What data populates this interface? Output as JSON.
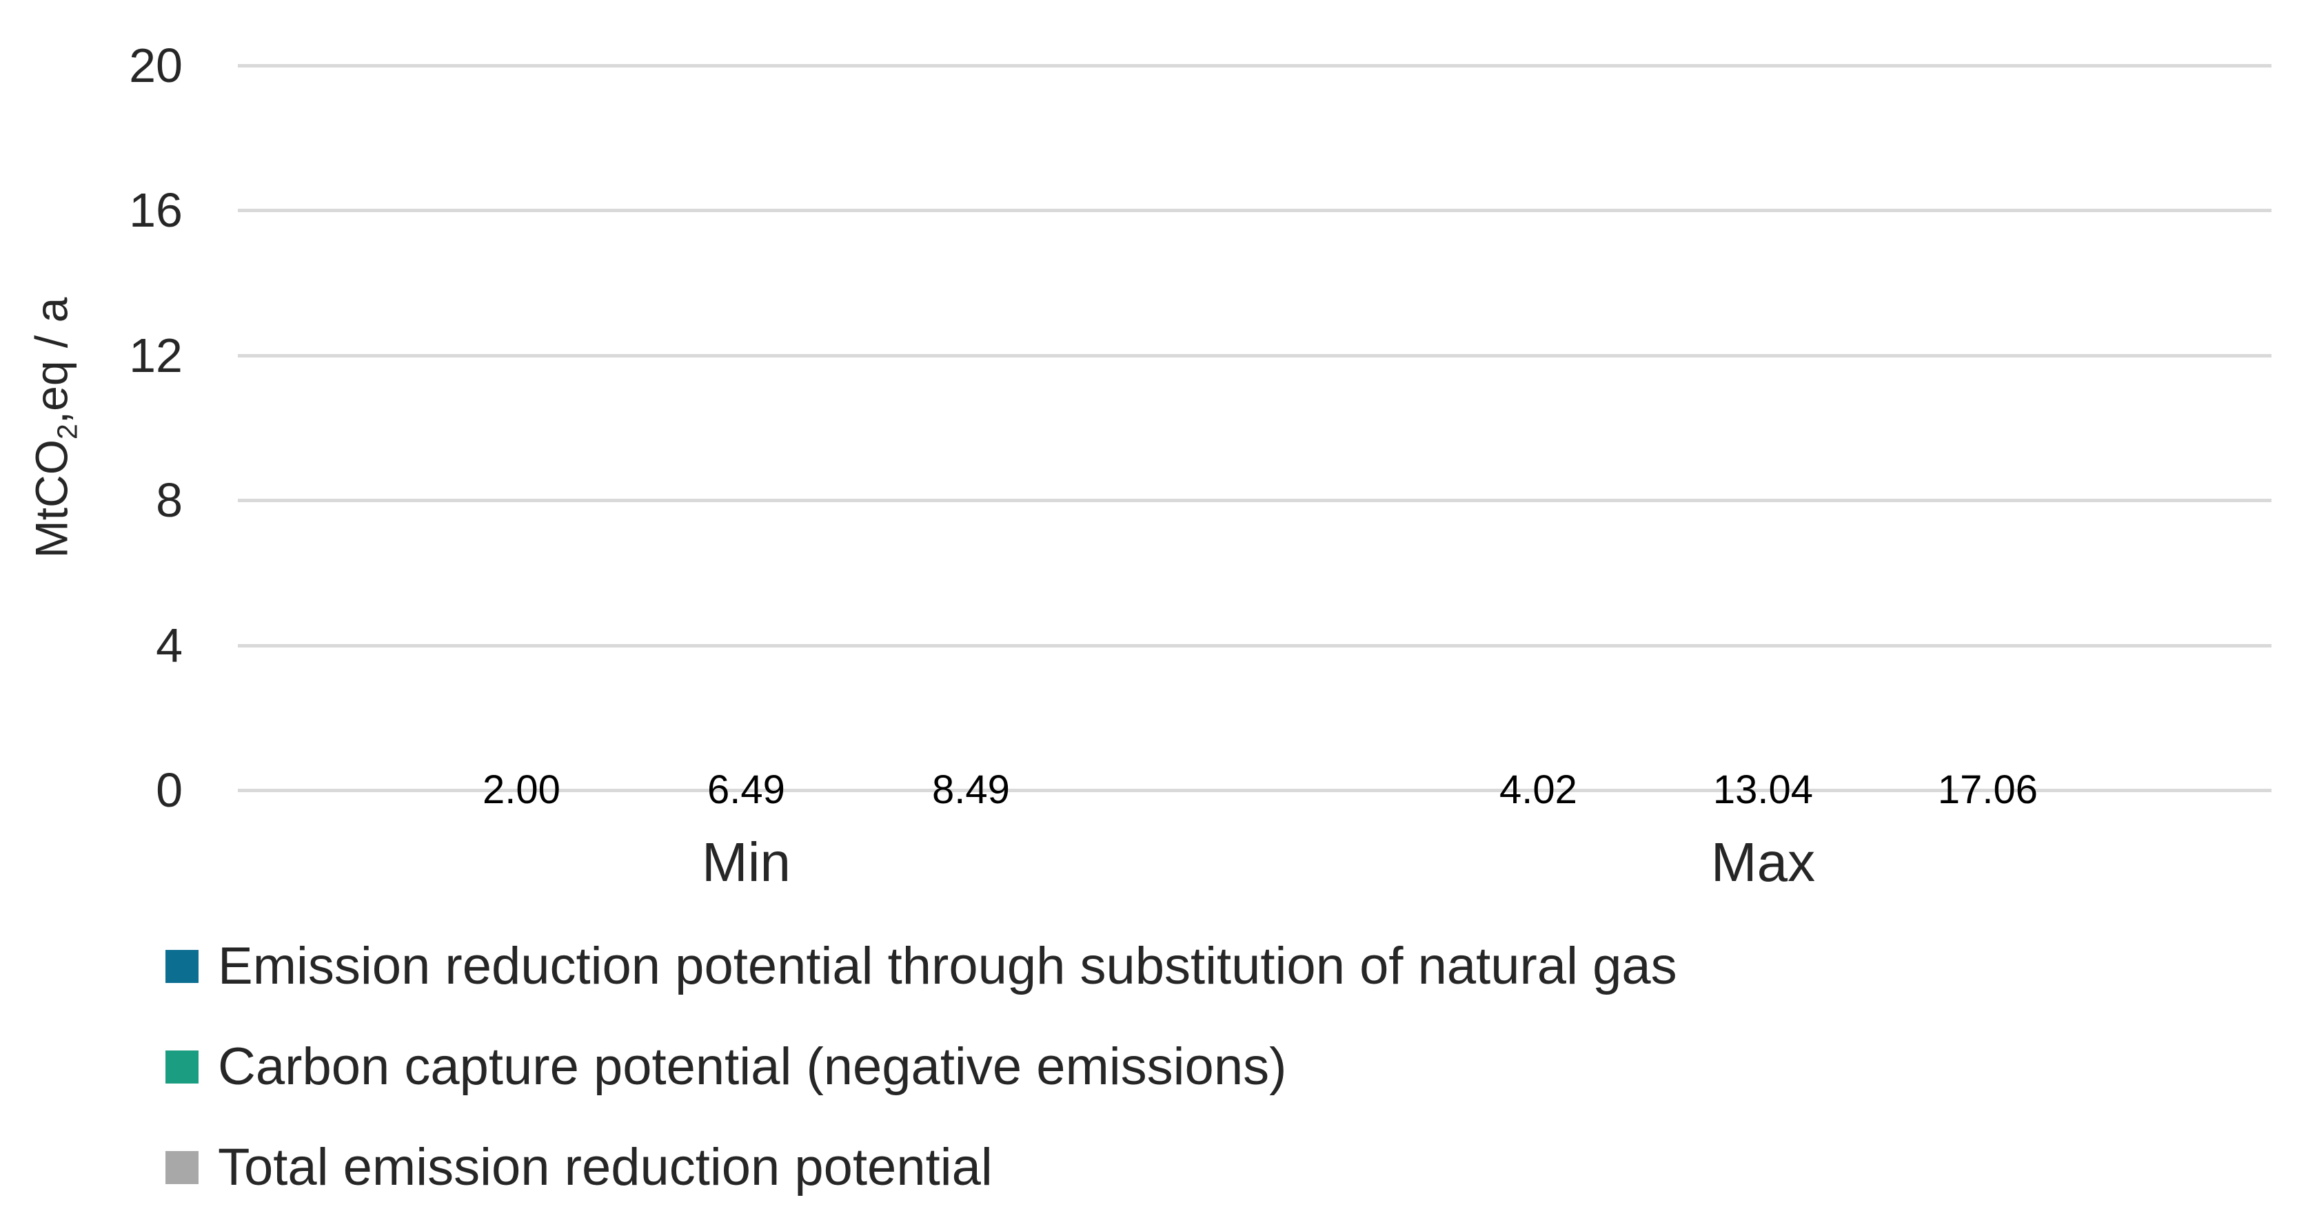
{
  "chart_data": {
    "type": "bar",
    "title": "",
    "categories": [
      "Min",
      "Max"
    ],
    "series": [
      {
        "name": "Emission reduction potential through substitution of natural gas",
        "color": "#0C6F92",
        "values": [
          2.0,
          4.02
        ],
        "data_labels": [
          "2.00",
          "4.02"
        ]
      },
      {
        "name": "Carbon capture potential (negative emissions)",
        "color": "#1B9D81",
        "values": [
          6.49,
          13.04
        ],
        "data_labels": [
          "6.49",
          "13.04"
        ]
      },
      {
        "name": "Total emission reduction potential",
        "color": "#A8A8A8",
        "values": [
          8.49,
          17.06
        ],
        "data_labels": [
          "8.49",
          "17.06"
        ]
      }
    ],
    "xlabel": "",
    "ylabel": "MtCO2,eq / a",
    "ylabel_parts": {
      "prefix": "MtCO",
      "subscript": "2",
      "suffix": ",eq / a"
    },
    "ylim": [
      0,
      20
    ],
    "yticks": [
      0,
      4,
      8,
      12,
      16,
      20
    ],
    "grid": true,
    "legend_position": "bottom-left",
    "colors": {
      "gridline": "#D9D9D9",
      "axis_text": "#262626",
      "data_label_text": "#000000",
      "background": "#FFFFFF"
    }
  }
}
